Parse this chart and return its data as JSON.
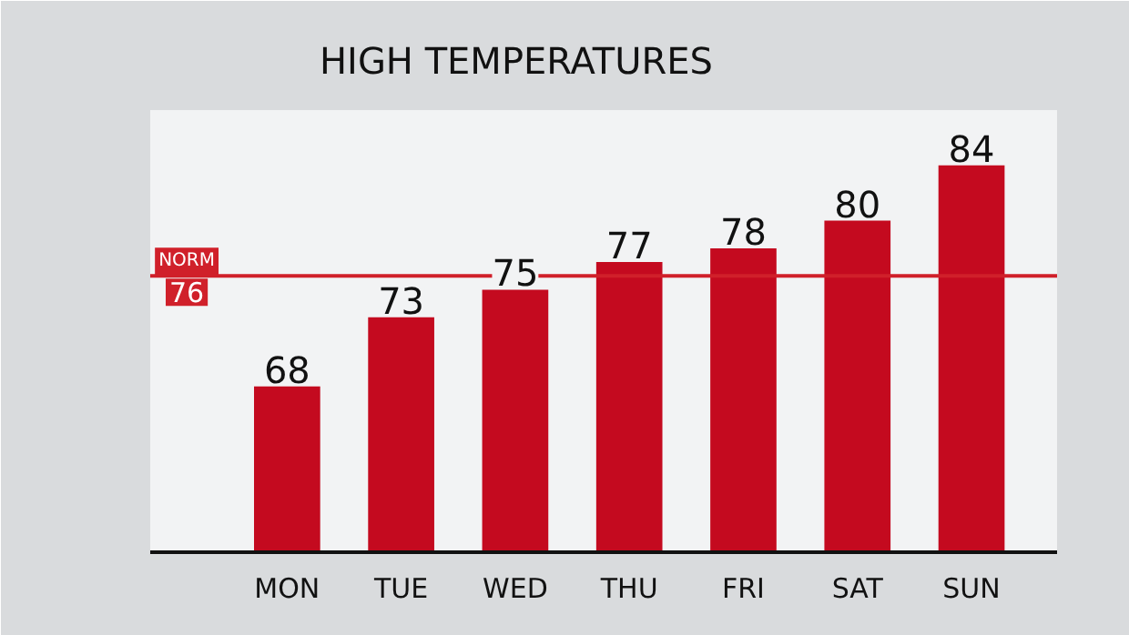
{
  "chart_data": {
    "type": "bar",
    "title": "HIGH TEMPERATURES",
    "categories": [
      "MON",
      "TUE",
      "WED",
      "THU",
      "FRI",
      "SAT",
      "SUN"
    ],
    "values": [
      68,
      73,
      75,
      77,
      78,
      80,
      84
    ],
    "color": "#c40a1f",
    "ylim": [
      56,
      88
    ],
    "tick_labels": "x",
    "data_labels": true,
    "grid": false,
    "ref_lines": [
      {
        "axis": "y",
        "value": 76,
        "label": "NORM 76",
        "color": "#d0202a"
      }
    ]
  }
}
